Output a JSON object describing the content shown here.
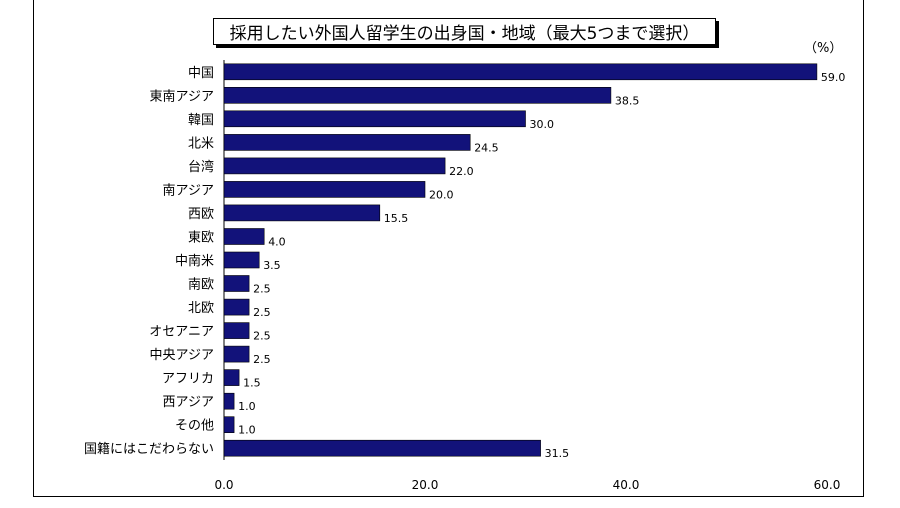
{
  "chart_data": {
    "type": "bar",
    "orientation": "horizontal",
    "title": "採用したい外国人留学生の出身国・地域（最大5つまで選択）",
    "unit_label": "（%）",
    "categories": [
      "中国",
      "東南アジア",
      "韓国",
      "北米",
      "台湾",
      "南アジア",
      "西欧",
      "東欧",
      "中南米",
      "南欧",
      "北欧",
      "オセアニア",
      "中央アジア",
      "アフリカ",
      "西アジア",
      "その他",
      "国籍にはこだわらない"
    ],
    "values": [
      59.0,
      38.5,
      30.0,
      24.5,
      22.0,
      20.0,
      15.5,
      4.0,
      3.5,
      2.5,
      2.5,
      2.5,
      2.5,
      1.5,
      1.0,
      1.0,
      31.5
    ],
    "xlim": [
      0,
      60
    ],
    "x_ticks": [
      "0.0",
      "20.0",
      "40.0",
      "60.0"
    ],
    "bar_color": "#12127a",
    "grid": false,
    "legend": "none"
  }
}
